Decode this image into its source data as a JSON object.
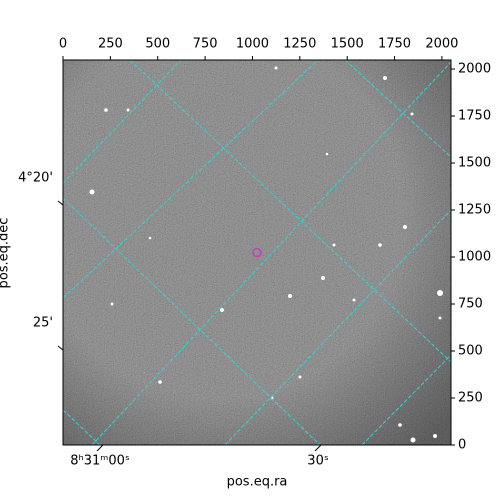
{
  "chart_data": {
    "type": "image",
    "xlabel": "pos.eq.ra",
    "ylabel": "pos.eq.dec",
    "xlim": [
      0,
      2048
    ],
    "ylim": [
      0,
      2048
    ],
    "xticks": [
      0,
      250,
      500,
      750,
      1000,
      1250,
      1500,
      1750,
      2000
    ],
    "yticks": [
      0,
      250,
      500,
      750,
      1000,
      1250,
      1500,
      1750,
      2000
    ],
    "ra_ticks": [
      "8ʰ31ᵐ00ˢ",
      "30ˢ"
    ],
    "dec_ticks": [
      "4°20'",
      "25'"
    ],
    "marker": {
      "x": 1024,
      "y": 1024,
      "color": "#c040c0"
    },
    "grid_color": "#2fd6d6"
  }
}
